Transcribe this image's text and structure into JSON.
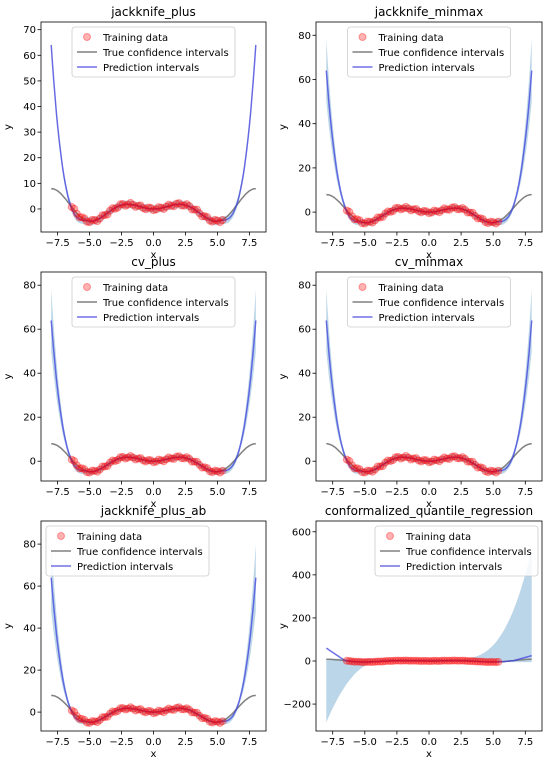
{
  "chart_data": [
    {
      "type": "line",
      "title": "jackknife_plus",
      "xlabel": "x",
      "ylabel": "y",
      "xlim": [
        -8.8,
        8.8
      ],
      "ylim": [
        -9,
        73
      ],
      "xticks": [
        -7.5,
        -5.0,
        -2.5,
        0.0,
        2.5,
        5.0,
        7.5
      ],
      "xtick_labels": [
        "−7.5",
        "−5.0",
        "−2.5",
        "0.0",
        "2.5",
        "5.0",
        "7.5"
      ],
      "yticks": [
        0,
        10,
        20,
        30,
        40,
        50,
        60,
        70
      ],
      "ytick_labels": [
        "0",
        "10",
        "20",
        "30",
        "40",
        "50",
        "60",
        "70"
      ],
      "legend": {
        "position": "top-center",
        "entries": [
          "Training data",
          "True confidence intervals",
          "Prediction intervals"
        ]
      },
      "prediction_max": 64,
      "band_spread": 0.02,
      "cqr_lower_min": null,
      "cqr_upper_max": null
    },
    {
      "type": "line",
      "title": "jackknife_minmax",
      "xlabel": "x",
      "ylabel": "y",
      "xlim": [
        -8.8,
        8.8
      ],
      "ylim": [
        -9,
        86
      ],
      "xticks": [
        -7.5,
        -5.0,
        -2.5,
        0.0,
        2.5,
        5.0,
        7.5
      ],
      "xtick_labels": [
        "−7.5",
        "−5.0",
        "−2.5",
        "0.0",
        "2.5",
        "5.0",
        "7.5"
      ],
      "yticks": [
        0,
        20,
        40,
        60,
        80
      ],
      "ytick_labels": [
        "0",
        "20",
        "40",
        "60",
        "80"
      ],
      "legend": {
        "position": "top-center",
        "entries": [
          "Training data",
          "True confidence intervals",
          "Prediction intervals"
        ]
      },
      "prediction_max": 64,
      "band_spread": 0.22,
      "cqr_lower_min": null,
      "cqr_upper_max": null
    },
    {
      "type": "line",
      "title": "cv_plus",
      "xlabel": "x",
      "ylabel": "y",
      "xlim": [
        -8.8,
        8.8
      ],
      "ylim": [
        -9,
        86
      ],
      "xticks": [
        -7.5,
        -5.0,
        -2.5,
        0.0,
        2.5,
        5.0,
        7.5
      ],
      "xtick_labels": [
        "−7.5",
        "−5.0",
        "−2.5",
        "0.0",
        "2.5",
        "5.0",
        "7.5"
      ],
      "yticks": [
        0,
        20,
        40,
        60,
        80
      ],
      "ytick_labels": [
        "0",
        "20",
        "40",
        "60",
        "80"
      ],
      "legend": {
        "position": "top-center",
        "entries": [
          "Training data",
          "True confidence intervals",
          "Prediction intervals"
        ]
      },
      "prediction_max": 64,
      "band_spread": 0.22,
      "cqr_lower_min": null,
      "cqr_upper_max": null
    },
    {
      "type": "line",
      "title": "cv_minmax",
      "xlabel": "x",
      "ylabel": "y",
      "xlim": [
        -8.8,
        8.8
      ],
      "ylim": [
        -9,
        86
      ],
      "xticks": [
        -7.5,
        -5.0,
        -2.5,
        0.0,
        2.5,
        5.0,
        7.5
      ],
      "xtick_labels": [
        "−7.5",
        "−5.0",
        "−2.5",
        "0.0",
        "2.5",
        "5.0",
        "7.5"
      ],
      "yticks": [
        0,
        20,
        40,
        60,
        80
      ],
      "ytick_labels": [
        "0",
        "20",
        "40",
        "60",
        "80"
      ],
      "legend": {
        "position": "top-center",
        "entries": [
          "Training data",
          "True confidence intervals",
          "Prediction intervals"
        ]
      },
      "prediction_max": 64,
      "band_spread": 0.22,
      "cqr_lower_min": null,
      "cqr_upper_max": null
    },
    {
      "type": "line",
      "title": "jackknife_plus_ab",
      "xlabel": "x",
      "ylabel": "y",
      "xlim": [
        -8.8,
        8.8
      ],
      "ylim": [
        -9,
        91
      ],
      "xticks": [
        -7.5,
        -5.0,
        -2.5,
        0.0,
        2.5,
        5.0,
        7.5
      ],
      "xtick_labels": [
        "−7.5",
        "−5.0",
        "−2.5",
        "0.0",
        "2.5",
        "5.0",
        "7.5"
      ],
      "yticks": [
        0,
        20,
        40,
        60,
        80
      ],
      "ytick_labels": [
        "0",
        "20",
        "40",
        "60",
        "80"
      ],
      "legend": {
        "position": "top-left",
        "entries": [
          "Training data",
          "True confidence intervals",
          "Prediction intervals"
        ]
      },
      "prediction_max": 64,
      "band_spread": 0.25,
      "cqr_lower_min": null,
      "cqr_upper_max": null
    },
    {
      "type": "line",
      "title": "conformalized_quantile_regression",
      "xlabel": "x",
      "ylabel": "y",
      "xlim": [
        -8.8,
        8.8
      ],
      "ylim": [
        -325,
        650
      ],
      "xticks": [
        -7.5,
        -5.0,
        -2.5,
        0.0,
        2.5,
        5.0,
        7.5
      ],
      "xtick_labels": [
        "−7.5",
        "−5.0",
        "−2.5",
        "0.0",
        "2.5",
        "5.0",
        "7.5"
      ],
      "yticks": [
        -200,
        0,
        200,
        400,
        600
      ],
      "ytick_labels": [
        "−200",
        "0",
        "200",
        "400",
        "600"
      ],
      "legend": {
        "position": "top-right",
        "entries": [
          "Training data",
          "True confidence intervals",
          "Prediction intervals"
        ]
      },
      "prediction_max": 64,
      "band_spread": 0,
      "cqr_lower_min": -280,
      "cqr_upper_max": 520
    }
  ],
  "training_x": [
    -6.4,
    -6.2,
    -6.0,
    -5.8,
    -5.6,
    -5.4,
    -5.2,
    -5.0,
    -4.8,
    -4.6,
    -4.4,
    -4.2,
    -4.0,
    -3.8,
    -3.6,
    -3.4,
    -3.2,
    -3.0,
    -2.8,
    -2.6,
    -2.4,
    -2.2,
    -2.0,
    -1.8,
    -1.6,
    -1.4,
    -1.2,
    -1.0,
    -0.8,
    -0.6,
    -0.4,
    -0.2,
    0.0,
    0.2,
    0.4,
    0.6,
    0.8,
    1.0,
    1.2,
    1.4,
    1.6,
    1.8,
    2.0,
    2.2,
    2.4,
    2.6,
    2.8,
    3.0,
    3.2,
    3.4,
    3.6,
    3.8,
    4.0,
    4.2,
    4.4,
    4.6,
    4.8,
    5.0,
    5.2,
    5.4
  ],
  "colors": {
    "training": "#ff0000",
    "true_ci": "#808080",
    "prediction": "#4040dd",
    "band": "#1f77b4"
  }
}
